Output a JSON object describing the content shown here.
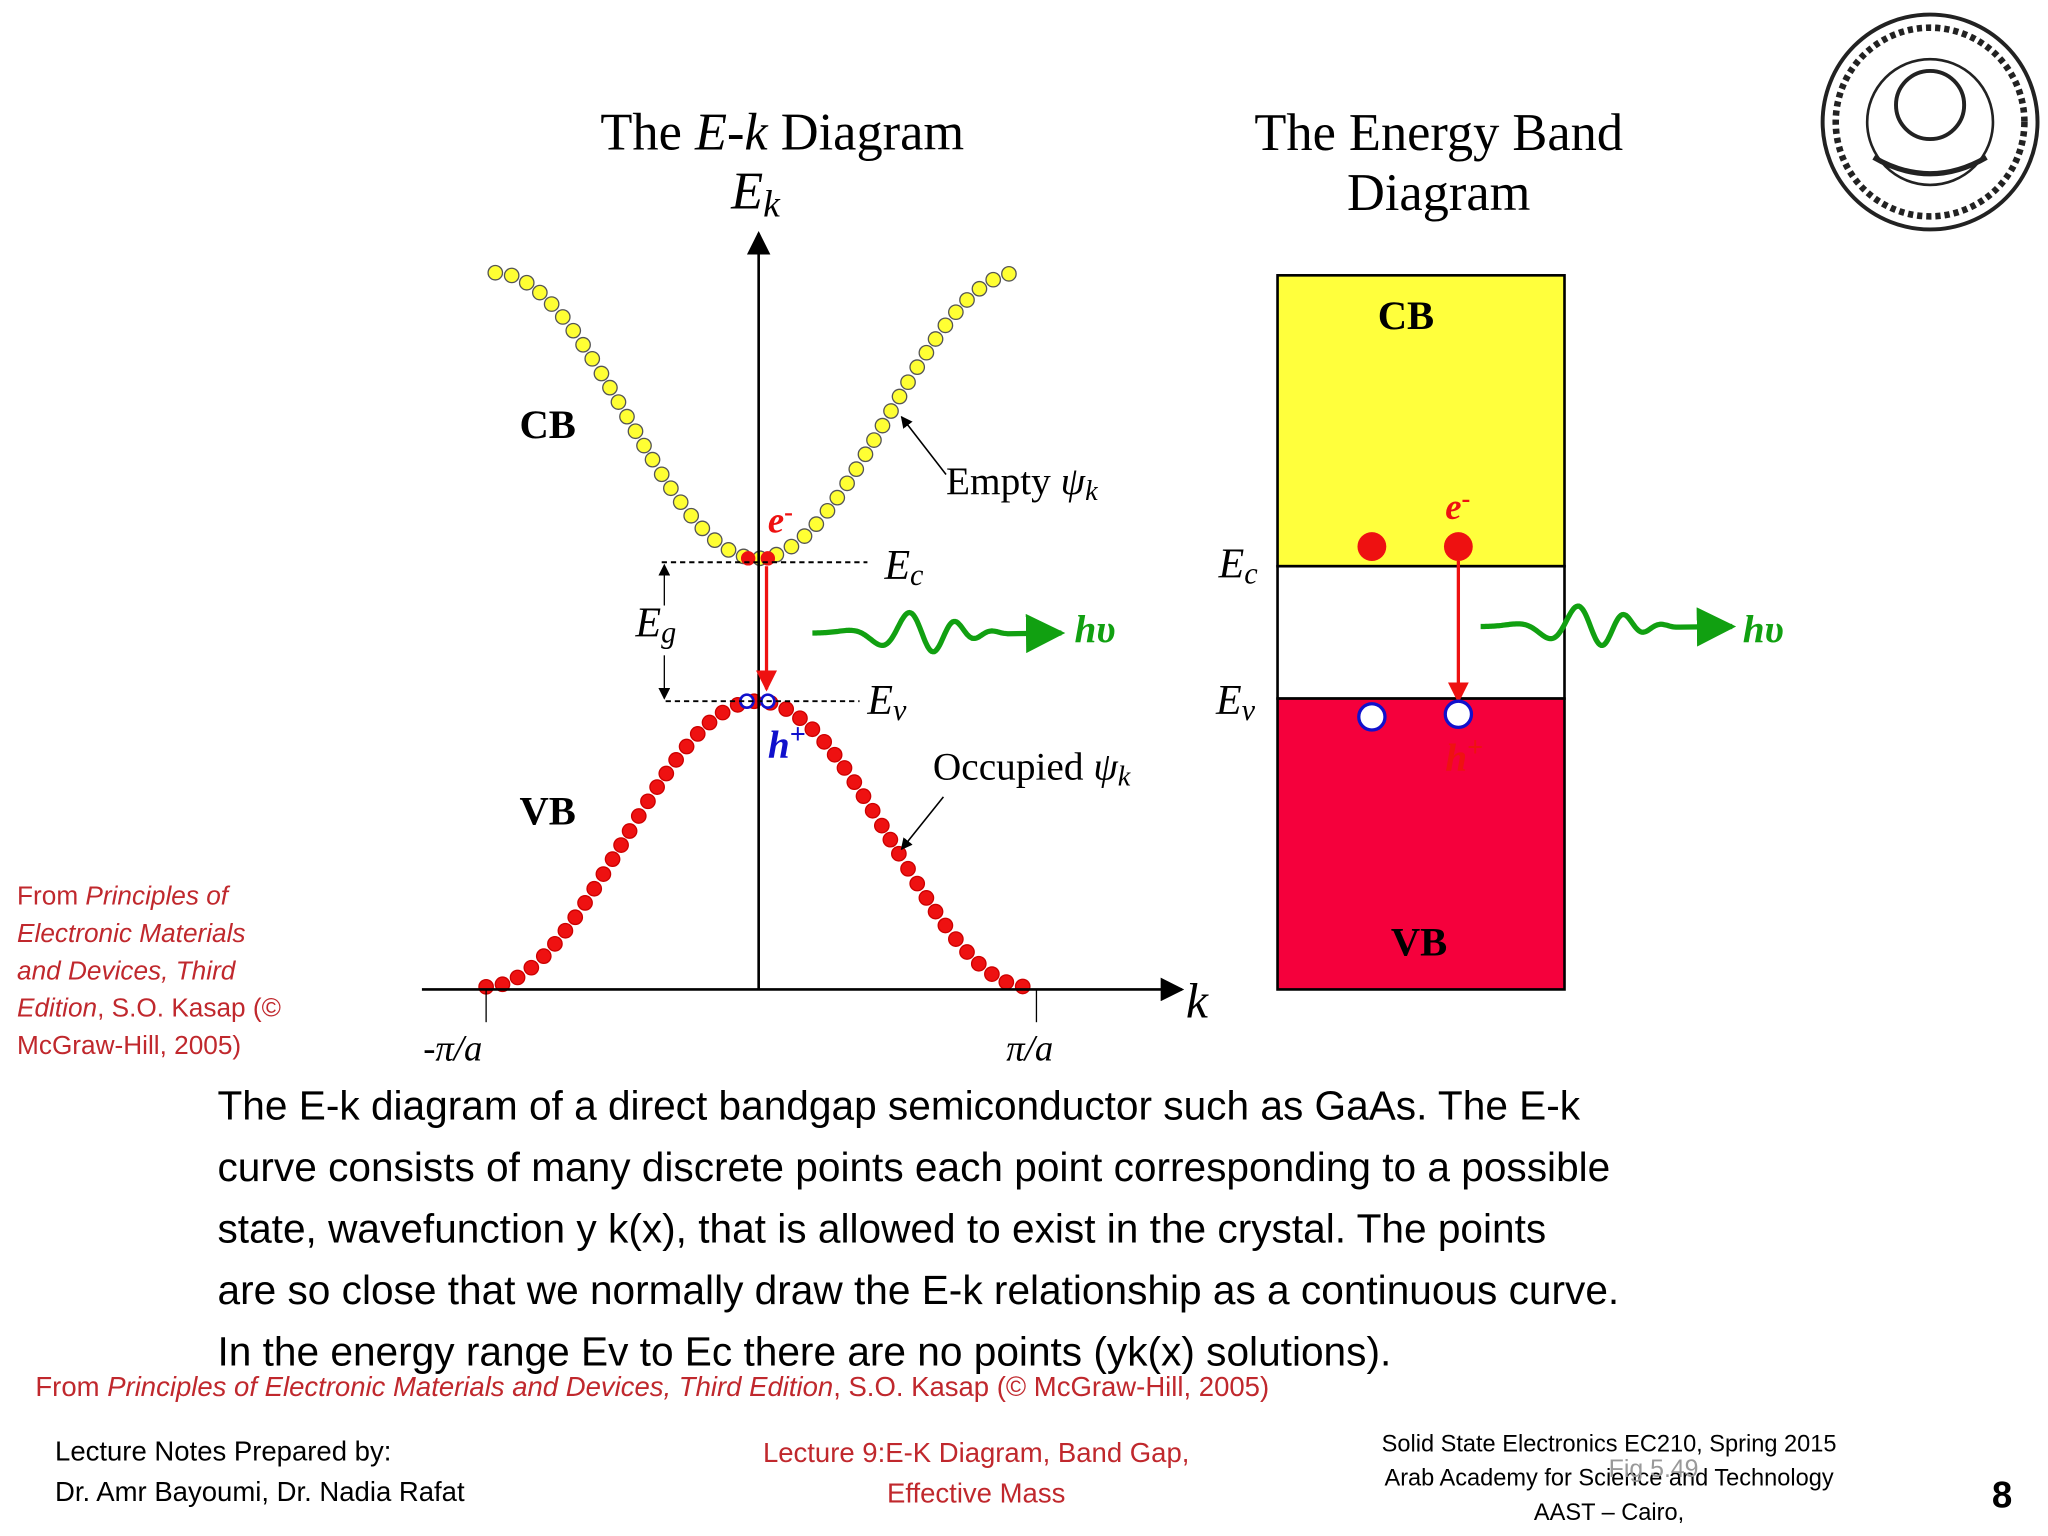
{
  "ek_diagram": {
    "title": [
      "The ",
      {
        "t": "E",
        "i": true
      },
      "-",
      {
        "t": "k",
        "i": true
      },
      " Diagram"
    ],
    "axis_y": [
      {
        "t": "E",
        "i": true
      },
      {
        "t": "k",
        "i": true,
        "sub": true
      }
    ],
    "axis_x": [
      {
        "t": "k",
        "i": true
      }
    ],
    "cb": "CB",
    "vb": "VB",
    "empty": [
      "Empty ",
      {
        "t": "ψ",
        "i": true
      },
      {
        "t": "k",
        "i": true,
        "sub": true
      }
    ],
    "occupied": [
      "Occupied ",
      {
        "t": "ψ",
        "i": true
      },
      {
        "t": "k",
        "i": true,
        "sub": true
      }
    ],
    "ec": [
      {
        "t": "E",
        "i": true
      },
      {
        "t": "c",
        "i": true,
        "sub": true
      }
    ],
    "ev": [
      {
        "t": "E",
        "i": true
      },
      {
        "t": "v",
        "i": true,
        "sub": true
      }
    ],
    "eg": [
      {
        "t": "E",
        "i": true
      },
      {
        "t": "g",
        "i": true,
        "sub": true
      }
    ],
    "electron": [
      {
        "t": "e",
        "i": true
      },
      {
        "t": "-",
        "sup": true
      }
    ],
    "hole": [
      {
        "t": "h",
        "i": true
      },
      {
        "t": "+",
        "sup": true
      }
    ],
    "photon": [
      {
        "t": "hυ",
        "i": true
      }
    ],
    "k_min": [
      {
        "t": "-π/a",
        "i": true
      }
    ],
    "k_max": [
      {
        "t": "π/a",
        "i": true
      }
    ]
  },
  "band_diagram": {
    "title": [
      "The Energy Band",
      "Diagram"
    ],
    "cb": "CB",
    "vb": "VB",
    "ec": [
      {
        "t": "E",
        "i": true
      },
      {
        "t": "c",
        "i": true,
        "sub": true
      }
    ],
    "ev": [
      {
        "t": "E",
        "i": true
      },
      {
        "t": "v",
        "i": true,
        "sub": true
      }
    ],
    "electron": [
      {
        "t": "e",
        "i": true
      },
      {
        "t": "-",
        "sup": true
      }
    ],
    "hole": [
      {
        "t": "h",
        "i": true
      },
      {
        "t": "+",
        "sup": true
      }
    ],
    "photon": [
      {
        "t": "hυ",
        "i": true
      }
    ]
  },
  "source_side": [
    [
      "From ",
      {
        "t": "Principles of",
        "i": true
      }
    ],
    [
      {
        "t": "Electronic Materials",
        "i": true
      }
    ],
    [
      {
        "t": "and Devices, Third",
        "i": true
      }
    ],
    [
      {
        "t": "Edition",
        "i": true
      },
      ", S.O. Kasap (©"
    ],
    [
      "McGraw-Hill, 2005)"
    ]
  ],
  "caption": [
    "The E-k diagram of a direct bandgap semiconductor such as GaAs. The E-k",
    "curve consists of many discrete points each point corresponding to a possible",
    "state, wavefunction y k(x), that is allowed to exist in the crystal. The points",
    "are so close that we normally draw the E-k relationship as a continuous curve.",
    "In the energy range Ev to Ec there are no points (yk(x) solutions)."
  ],
  "source_bottom": [
    "From ",
    {
      "t": "Principles of Electronic Materials and Devices, Third Edition",
      "i": true
    },
    ", S.O. Kasap (© McGraw-Hill, 2005)"
  ],
  "footer": {
    "left": [
      "Lecture Notes Prepared by:",
      "Dr. Amr Bayoumi, Dr. Nadia Rafat"
    ],
    "center": [
      "Lecture 9:E-K Diagram,  Band Gap,",
      "Effective Mass"
    ],
    "right": [
      "Solid State Electronics EC210, Spring 2015",
      "Arab Academy for Science and Technology",
      "AAST – Cairo,"
    ],
    "fig": "Fig 5.49",
    "page": "8"
  }
}
